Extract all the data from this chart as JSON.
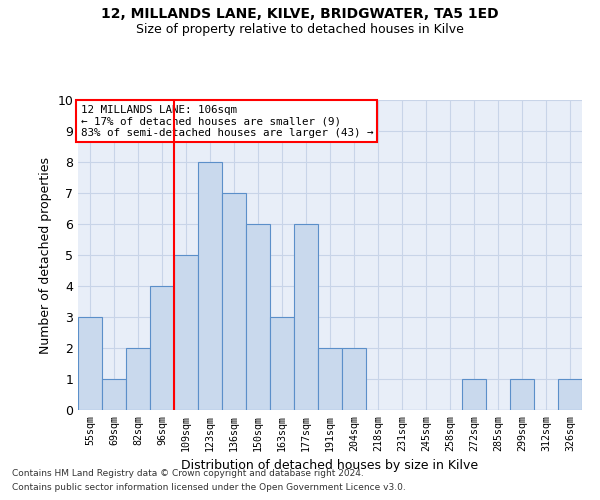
{
  "title1": "12, MILLANDS LANE, KILVE, BRIDGWATER, TA5 1ED",
  "title2": "Size of property relative to detached houses in Kilve",
  "xlabel": "Distribution of detached houses by size in Kilve",
  "ylabel": "Number of detached properties",
  "footnote1": "Contains HM Land Registry data © Crown copyright and database right 2024.",
  "footnote2": "Contains public sector information licensed under the Open Government Licence v3.0.",
  "annotation_line1": "12 MILLANDS LANE: 106sqm",
  "annotation_line2": "← 17% of detached houses are smaller (9)",
  "annotation_line3": "83% of semi-detached houses are larger (43) →",
  "bar_color": "#c9d9ed",
  "bar_edge_color": "#5b8fc9",
  "redline_bin": 4,
  "categories": [
    "55sqm",
    "69sqm",
    "82sqm",
    "96sqm",
    "109sqm",
    "123sqm",
    "136sqm",
    "150sqm",
    "163sqm",
    "177sqm",
    "191sqm",
    "204sqm",
    "218sqm",
    "231sqm",
    "245sqm",
    "258sqm",
    "272sqm",
    "285sqm",
    "299sqm",
    "312sqm",
    "326sqm"
  ],
  "values": [
    3,
    1,
    2,
    4,
    5,
    8,
    7,
    6,
    3,
    6,
    2,
    2,
    0,
    0,
    0,
    0,
    1,
    0,
    1,
    0,
    1
  ],
  "ylim": [
    0,
    10
  ],
  "yticks": [
    0,
    1,
    2,
    3,
    4,
    5,
    6,
    7,
    8,
    9,
    10
  ],
  "grid_color": "#c8d4e8",
  "background_color": "#e8eef8"
}
